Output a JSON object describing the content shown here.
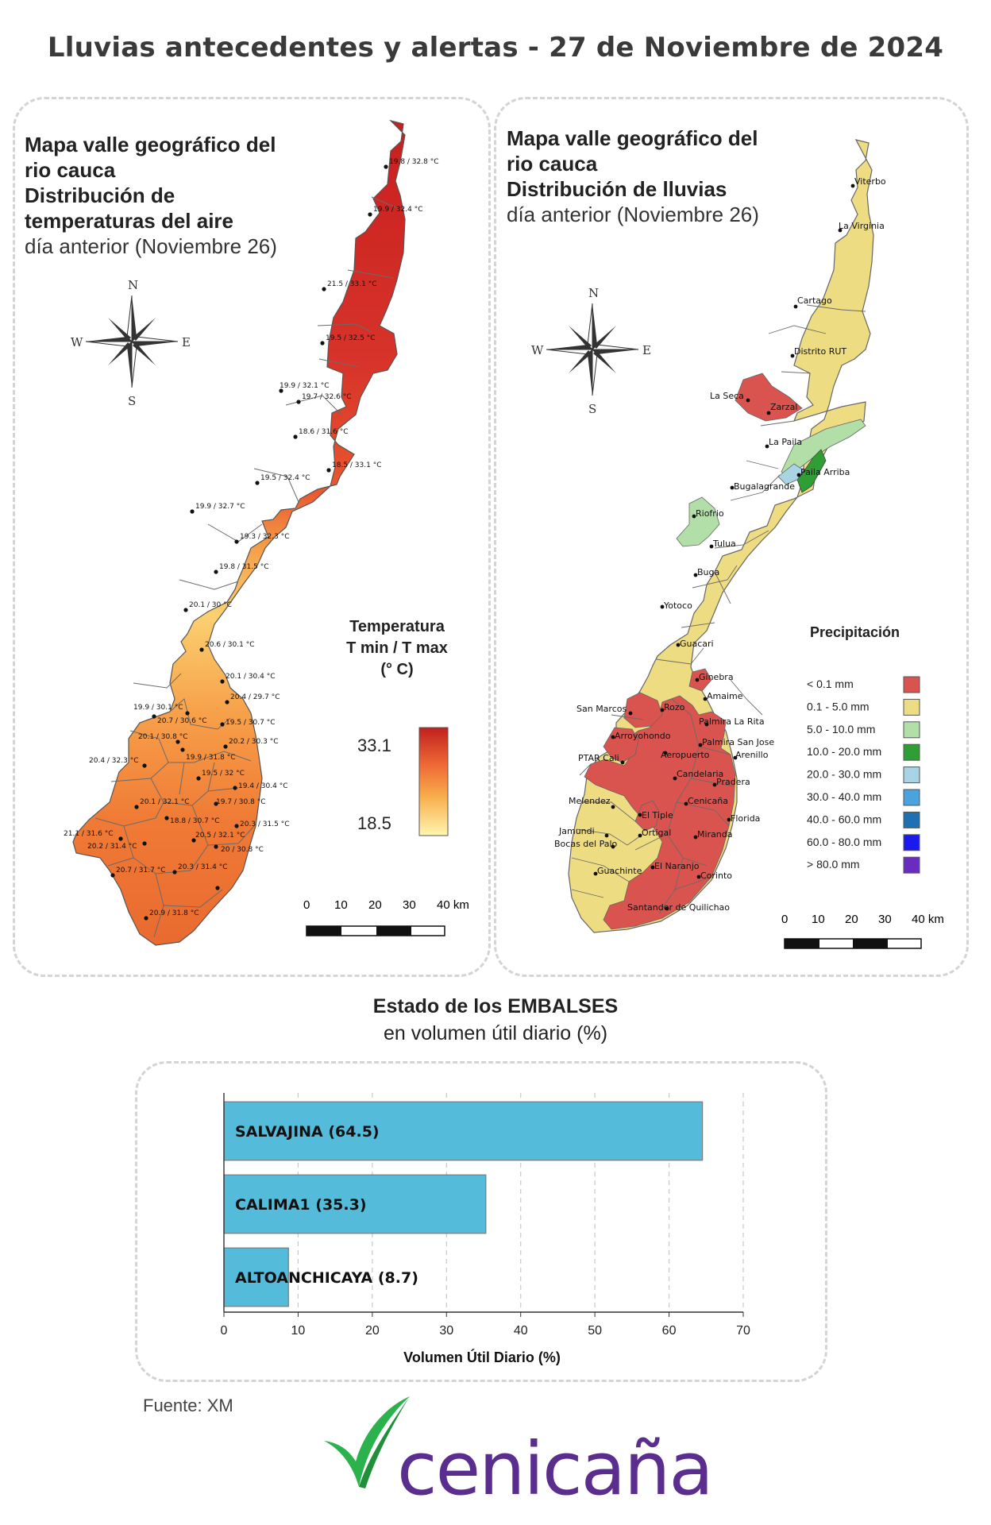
{
  "header": {
    "title": "Lluvias antecedentes y alertas - 27 de Noviembre de 2024"
  },
  "temperature_map": {
    "title_bold": [
      "Mapa valle geográfico del",
      "rio cauca",
      "Distribución de",
      "temperaturas del aire"
    ],
    "subtitle": "día anterior (Noviembre 26)",
    "compass": {
      "n": "N",
      "s": "S",
      "e": "E",
      "w": "W"
    },
    "legend": {
      "title_line1": "Temperatura",
      "title_line2": "T min / T max",
      "title_line3": "(° C)",
      "max": "33.1",
      "min": "18.5",
      "colors": [
        "#c0201e",
        "#f06a35",
        "#f8b04e",
        "#fff6b0"
      ]
    },
    "scalebar": [
      "0",
      "10",
      "20",
      "30",
      "40 km"
    ],
    "stations": [
      {
        "label": "19.8 / 32.8 °C"
      },
      {
        "label": "19.9 / 32.4 °C"
      },
      {
        "label": "21.5 / 33.1 °C"
      },
      {
        "label": "19.5 / 32.5 °C"
      },
      {
        "label": "19.9 / 32.1 °C"
      },
      {
        "label": "19.7 / 32.6 °C"
      },
      {
        "label": "18.6 / 31.6 °C"
      },
      {
        "label": "18.5 / 33.1 °C"
      },
      {
        "label": "19.5 / 32.4 °C"
      },
      {
        "label": "19.9 / 32.7 °C"
      },
      {
        "label": "19.3 / 32.3 °C"
      },
      {
        "label": "19.8 / 31.5 °C"
      },
      {
        "label": "20.1 / 30 °C"
      },
      {
        "label": "20.6 / 30.1 °C"
      },
      {
        "label": "20.1 / 30.4 °C"
      },
      {
        "label": "20.4 / 29.7 °C"
      },
      {
        "label": "19.9 / 30.1 °C"
      },
      {
        "label": "20.7 / 30.6 °C"
      },
      {
        "label": "19.5 / 30.7 °C"
      },
      {
        "label": "20.1 / 30.8 °C"
      },
      {
        "label": "20.2 / 30.3 °C"
      },
      {
        "label": "20.4 / 32.3 °C"
      },
      {
        "label": "19.9 / 31.8 °C"
      },
      {
        "label": "19.5 / 32 °C"
      },
      {
        "label": "19.4 / 30.4 °C"
      },
      {
        "label": "20.1 / 32.1 °C"
      },
      {
        "label": "19.7 / 30.8 °C"
      },
      {
        "label": "18.8 / 30.7 °C"
      },
      {
        "label": "20.3 / 31.5 °C"
      },
      {
        "label": "21.1 / 31.6 °C"
      },
      {
        "label": "20.5 / 32.1 °C"
      },
      {
        "label": "20.2 / 31.4 °C"
      },
      {
        "label": "20 / 30.8 °C"
      },
      {
        "label": "20.7 / 31.7 °C"
      },
      {
        "label": "20.3 / 31.4 °C"
      },
      {
        "label": "20.9 / 31.8 °C"
      }
    ]
  },
  "rain_map": {
    "title_line1": "Mapa valle geográfico del",
    "title_line2": "rio cauca",
    "title_line3": "Distribución de lluvias",
    "subtitle": "día anterior (Noviembre 26)",
    "compass": {
      "n": "N",
      "s": "S",
      "e": "E",
      "w": "W"
    },
    "legend_title": "Precipitación",
    "legend": [
      {
        "label": "< 0.1 mm",
        "color": "#d9534f"
      },
      {
        "label": "0.1 - 5.0 mm",
        "color": "#eedc82"
      },
      {
        "label": "5.0 - 10.0 mm",
        "color": "#b2dfa8"
      },
      {
        "label": "10.0 - 20.0 mm",
        "color": "#2e9e35"
      },
      {
        "label": "20.0 - 30.0 mm",
        "color": "#a8d4e6"
      },
      {
        "label": "30.0 - 40.0 mm",
        "color": "#4aa3df"
      },
      {
        "label": "40.0 - 60.0 mm",
        "color": "#1f6fb3"
      },
      {
        "label": "60.0 - 80.0 mm",
        "color": "#1a1aee"
      },
      {
        "label": "> 80.0 mm",
        "color": "#6a2cc0"
      }
    ],
    "scalebar": [
      "0",
      "10",
      "20",
      "30",
      "40 km"
    ],
    "towns": [
      "Viterbo",
      "La Virginia",
      "Cartago",
      "Distrito RUT",
      "La Seca",
      "Zarzal",
      "La Paila",
      "Paila Arriba",
      "Bugalagrande",
      "Riofrio",
      "Tulua",
      "Buga",
      "Yotoco",
      "Guacari",
      "Ginebra",
      "Amaime",
      "San Marcos",
      "Rozo",
      "Palmira La Rita",
      "Arroyohondo",
      "Palmira San Jose",
      "Aeropuerto",
      "Arenillo",
      "PTAR Cali",
      "Candelaria",
      "Pradera",
      "Melendez",
      "Cenicaña",
      "El Tiple",
      "Florida",
      "Jamundi",
      "Bocas del Palo",
      "Ortigal",
      "Miranda",
      "Guachinte",
      "El Naranjo",
      "Corinto",
      "Santander de Quilichao"
    ]
  },
  "reservoirs": {
    "title": "Estado de los EMBALSES",
    "subtitle": "en volumen útil diario (%)",
    "bar_color": "#55bbdb"
  },
  "chart_data": {
    "type": "bar",
    "orientation": "horizontal",
    "categories": [
      "SALVAJINA (64.5)",
      "CALIMA1 (35.3)",
      "ALTOANCHICAYA (8.7)"
    ],
    "values": [
      64.5,
      35.3,
      8.7
    ],
    "xlabel": "Volumen Útil Diario (%)",
    "xlim": [
      0,
      70
    ],
    "xticks": [
      "0",
      "10",
      "20",
      "30",
      "40",
      "50",
      "60",
      "70"
    ],
    "grid": true
  },
  "footer": {
    "source": "Fuente: XM",
    "logo_text": "cenicaña",
    "logo_color": "#5b2d8e",
    "logo_leaf_color": "#2bb24c"
  }
}
